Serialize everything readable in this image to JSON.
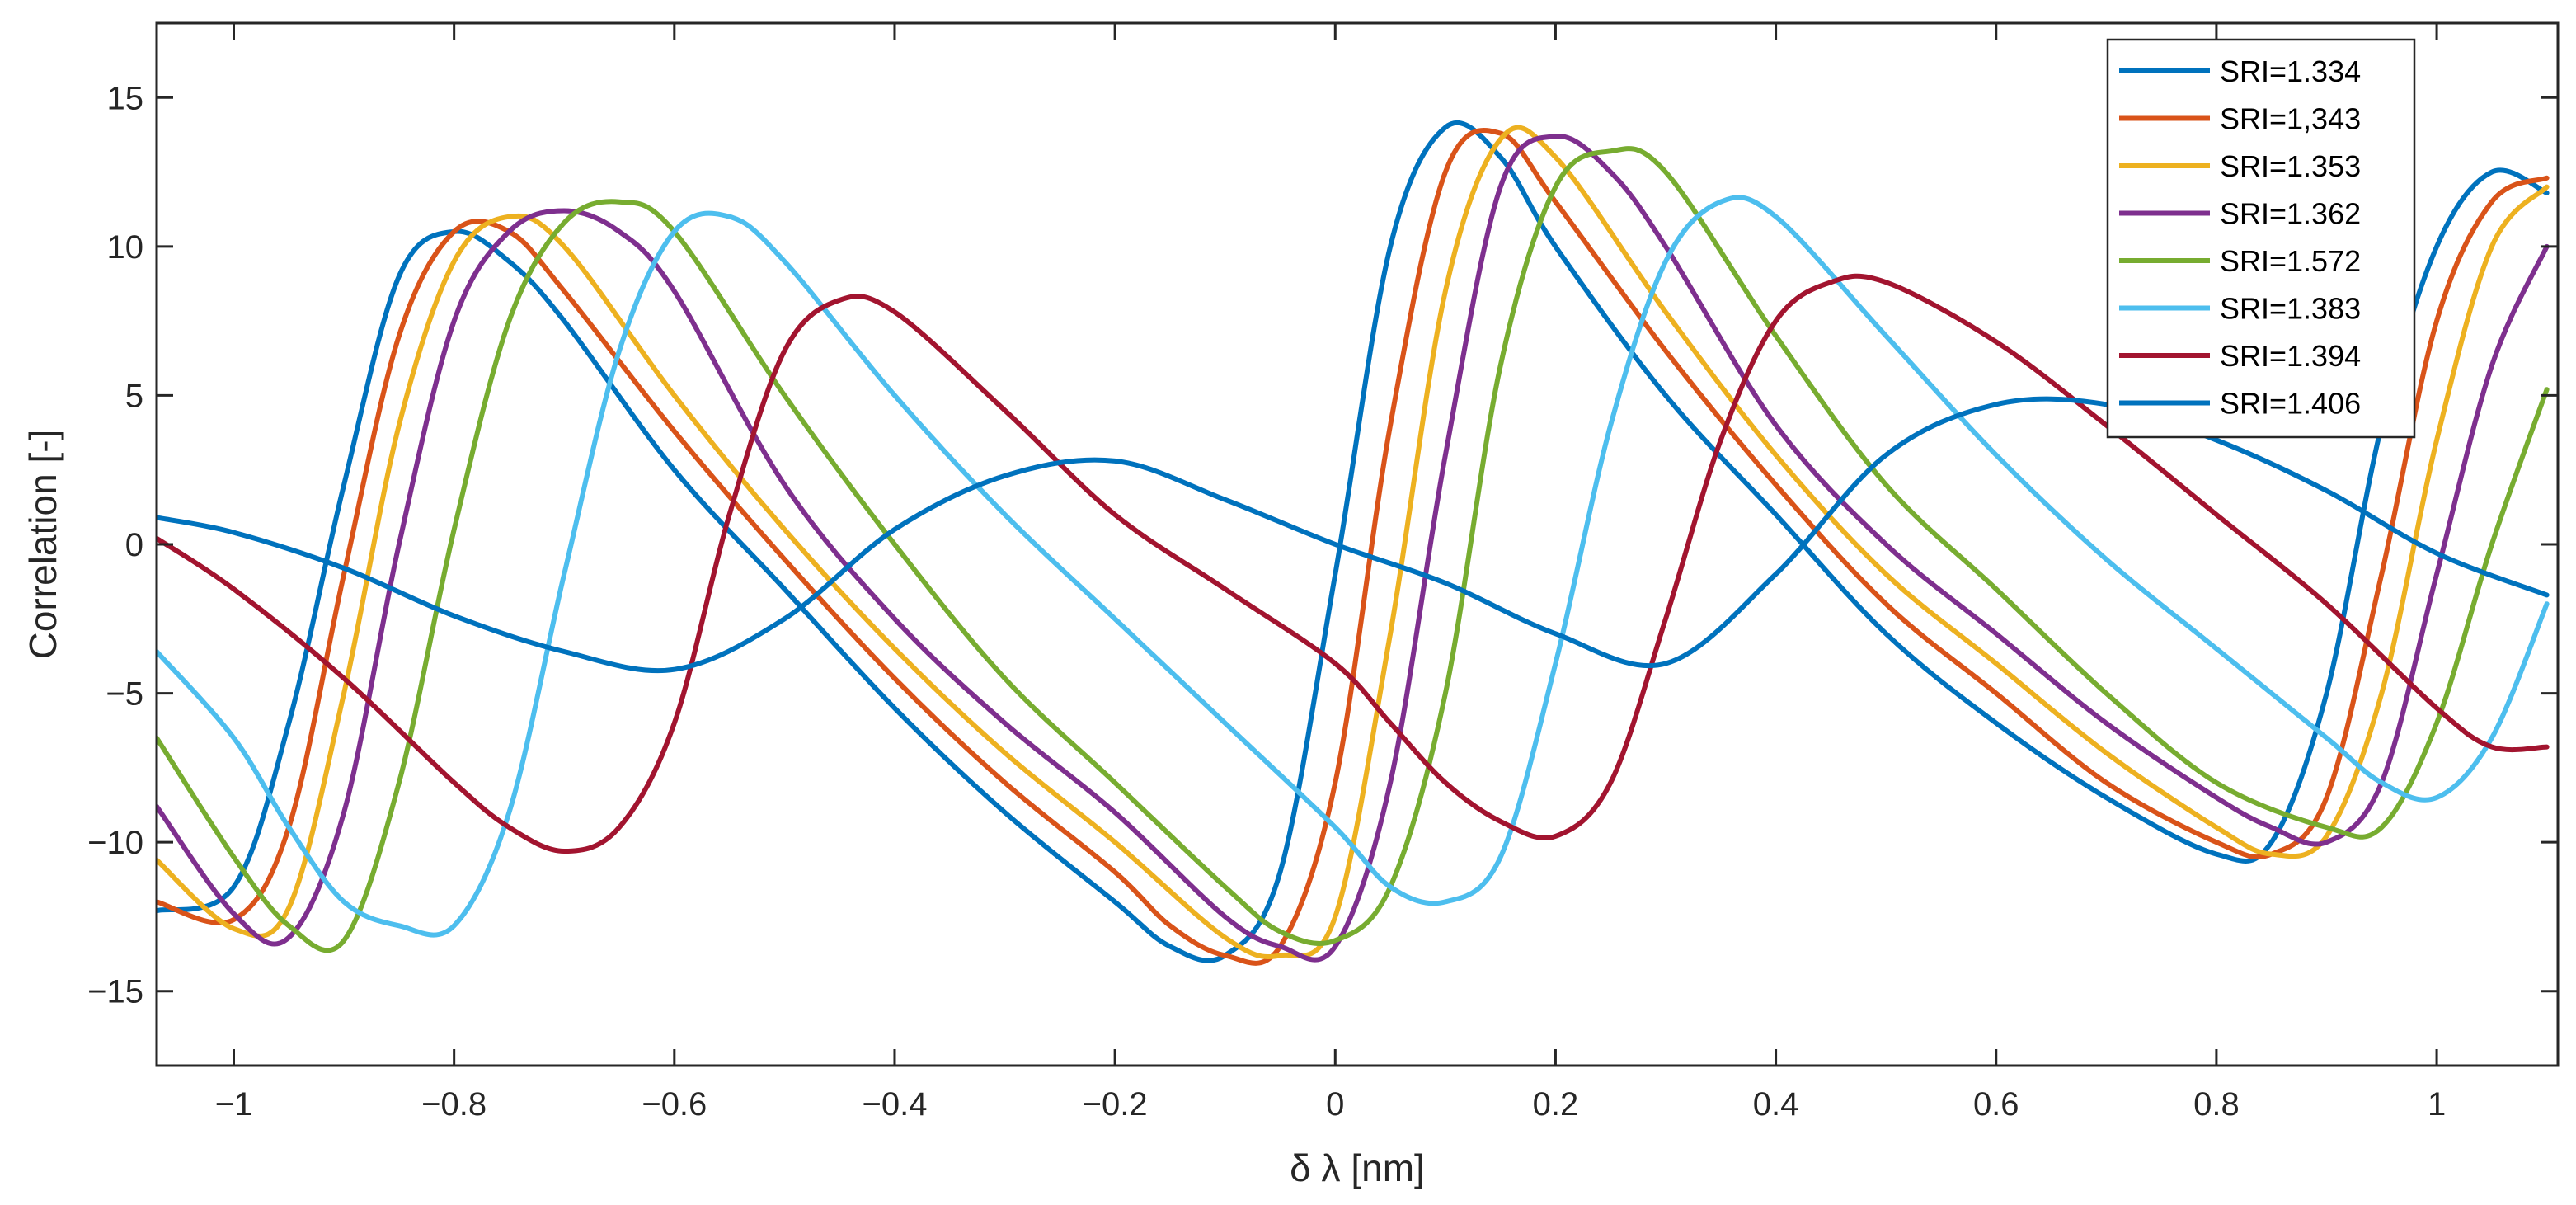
{
  "chart_data": {
    "type": "line",
    "title": "",
    "xlabel": "δ λ [nm]",
    "ylabel": "Correlation [-]",
    "xlim": [
      -1.07,
      1.11
    ],
    "ylim": [
      -17.5,
      17.5
    ],
    "xticks": [
      -1,
      -0.8,
      -0.6,
      -0.4,
      -0.2,
      0,
      0.2,
      0.4,
      0.6,
      0.8,
      1
    ],
    "xtick_labels": [
      "−1",
      "−0.8",
      "−0.6",
      "−0.4",
      "−0.2",
      "0",
      "0.2",
      "0.4",
      "0.6",
      "0.8",
      "1"
    ],
    "yticks": [
      -15,
      -10,
      -5,
      0,
      5,
      10,
      15
    ],
    "ytick_labels": [
      "−15",
      "−10",
      "−5",
      "0",
      "5",
      "10",
      "15"
    ],
    "grid": false,
    "legend_position": "top-right",
    "series": [
      {
        "name": "SRI=1.334",
        "color": "#0072BD",
        "x": [
          -1.07,
          -1.0,
          -0.95,
          -0.9,
          -0.85,
          -0.8,
          -0.75,
          -0.7,
          -0.6,
          -0.5,
          -0.4,
          -0.3,
          -0.2,
          -0.15,
          -0.1,
          -0.05,
          0.0,
          0.05,
          0.1,
          0.15,
          0.2,
          0.3,
          0.4,
          0.5,
          0.6,
          0.7,
          0.8,
          0.85,
          0.9,
          0.95,
          1.0,
          1.05,
          1.1
        ],
        "y": [
          -12.3,
          -11.5,
          -6.0,
          2.0,
          9.0,
          10.5,
          9.5,
          7.5,
          2.5,
          -1.5,
          -5.5,
          -9.0,
          -12.0,
          -13.5,
          -13.8,
          -11.0,
          -1.0,
          10.0,
          14.0,
          13.0,
          10.0,
          5.0,
          1.0,
          -3.0,
          -6.0,
          -8.5,
          -10.4,
          -10.0,
          -5.0,
          4.0,
          10.0,
          12.5,
          11.8
        ]
      },
      {
        "name": "SRI=1,343",
        "color": "#D95319",
        "x": [
          -1.07,
          -1.0,
          -0.95,
          -0.9,
          -0.85,
          -0.8,
          -0.75,
          -0.7,
          -0.6,
          -0.5,
          -0.4,
          -0.3,
          -0.2,
          -0.15,
          -0.1,
          -0.05,
          0.0,
          0.05,
          0.1,
          0.15,
          0.2,
          0.3,
          0.4,
          0.5,
          0.6,
          0.7,
          0.8,
          0.85,
          0.9,
          0.95,
          1.0,
          1.05,
          1.1
        ],
        "y": [
          -12.0,
          -12.6,
          -9.5,
          -1.0,
          7.0,
          10.5,
          10.5,
          8.5,
          3.8,
          -0.5,
          -4.5,
          -8.0,
          -11.0,
          -12.8,
          -13.8,
          -13.5,
          -8.0,
          4.0,
          12.5,
          13.8,
          11.5,
          6.5,
          2.0,
          -2.0,
          -5.0,
          -8.0,
          -10.0,
          -10.4,
          -8.5,
          -1.0,
          7.5,
          11.5,
          12.3
        ]
      },
      {
        "name": "SRI=1.353",
        "color": "#EDB120",
        "x": [
          -1.07,
          -1.0,
          -0.95,
          -0.9,
          -0.85,
          -0.8,
          -0.75,
          -0.7,
          -0.6,
          -0.5,
          -0.4,
          -0.3,
          -0.2,
          -0.1,
          -0.05,
          0.0,
          0.05,
          0.1,
          0.15,
          0.2,
          0.3,
          0.4,
          0.5,
          0.6,
          0.7,
          0.8,
          0.85,
          0.9,
          0.95,
          1.0,
          1.05,
          1.1
        ],
        "y": [
          -10.6,
          -12.9,
          -12.2,
          -5.0,
          4.0,
          9.5,
          11.0,
          10.0,
          5.0,
          0.5,
          -3.5,
          -7.0,
          -10.0,
          -13.2,
          -13.8,
          -12.5,
          -3.0,
          8.5,
          13.6,
          13.0,
          7.8,
          3.0,
          -1.0,
          -4.0,
          -7.0,
          -9.5,
          -10.4,
          -9.8,
          -5.0,
          3.5,
          10.0,
          12.0
        ]
      },
      {
        "name": "SRI=1.362",
        "color": "#7E2F8E",
        "x": [
          -1.07,
          -1.0,
          -0.95,
          -0.9,
          -0.85,
          -0.8,
          -0.75,
          -0.7,
          -0.65,
          -0.6,
          -0.5,
          -0.4,
          -0.3,
          -0.2,
          -0.1,
          -0.05,
          0.0,
          0.05,
          0.1,
          0.15,
          0.2,
          0.25,
          0.3,
          0.4,
          0.5,
          0.6,
          0.7,
          0.8,
          0.85,
          0.9,
          0.95,
          1.0,
          1.05,
          1.1
        ],
        "y": [
          -8.8,
          -12.4,
          -13.2,
          -9.0,
          0.0,
          7.5,
          10.5,
          11.2,
          10.5,
          8.5,
          2.0,
          -2.5,
          -6.0,
          -9.0,
          -12.5,
          -13.5,
          -13.5,
          -8.0,
          3.0,
          12.0,
          13.7,
          12.5,
          10.0,
          4.0,
          0.0,
          -3.0,
          -6.0,
          -8.5,
          -9.5,
          -10.0,
          -8.0,
          -1.0,
          6.0,
          10.0
        ]
      },
      {
        "name": "SRI=1.572",
        "color": "#77AC30",
        "x": [
          -1.07,
          -1.0,
          -0.95,
          -0.9,
          -0.85,
          -0.8,
          -0.75,
          -0.7,
          -0.65,
          -0.6,
          -0.5,
          -0.4,
          -0.3,
          -0.2,
          -0.1,
          -0.05,
          0.0,
          0.05,
          0.1,
          0.15,
          0.2,
          0.25,
          0.3,
          0.4,
          0.5,
          0.6,
          0.7,
          0.8,
          0.9,
          0.95,
          1.0,
          1.05,
          1.1
        ],
        "y": [
          -6.5,
          -10.5,
          -12.8,
          -13.3,
          -8.0,
          0.5,
          7.5,
          10.8,
          11.5,
          10.5,
          5.0,
          0.0,
          -4.5,
          -8.0,
          -11.5,
          -13.0,
          -13.3,
          -11.5,
          -5.0,
          6.0,
          12.0,
          13.2,
          12.5,
          7.0,
          2.0,
          -1.5,
          -5.0,
          -8.0,
          -9.5,
          -9.5,
          -6.0,
          0.0,
          5.2
        ]
      },
      {
        "name": "SRI=1.383",
        "color": "#4DBEEE",
        "x": [
          -1.07,
          -1.0,
          -0.95,
          -0.9,
          -0.85,
          -0.8,
          -0.75,
          -0.7,
          -0.65,
          -0.6,
          -0.55,
          -0.5,
          -0.4,
          -0.3,
          -0.2,
          -0.1,
          0.0,
          0.05,
          0.1,
          0.15,
          0.2,
          0.25,
          0.3,
          0.35,
          0.4,
          0.5,
          0.6,
          0.7,
          0.8,
          0.9,
          0.95,
          1.0,
          1.05,
          1.1
        ],
        "y": [
          -3.6,
          -6.5,
          -9.5,
          -12.0,
          -12.8,
          -12.8,
          -9.0,
          -1.0,
          6.5,
          10.5,
          11.0,
          9.5,
          5.0,
          1.0,
          -2.5,
          -6.0,
          -9.5,
          -11.5,
          -12.0,
          -10.5,
          -4.0,
          4.0,
          9.5,
          11.5,
          11.0,
          7.0,
          3.0,
          -0.5,
          -3.5,
          -6.5,
          -8.0,
          -8.5,
          -6.5,
          -2.0
        ]
      },
      {
        "name": "SRI=1.394",
        "color": "#A2142F",
        "x": [
          -1.07,
          -1.0,
          -0.9,
          -0.8,
          -0.75,
          -0.7,
          -0.65,
          -0.6,
          -0.55,
          -0.5,
          -0.45,
          -0.4,
          -0.3,
          -0.2,
          -0.1,
          0.0,
          0.05,
          0.1,
          0.15,
          0.2,
          0.25,
          0.3,
          0.35,
          0.4,
          0.45,
          0.5,
          0.6,
          0.7,
          0.8,
          0.9,
          1.0,
          1.05,
          1.1
        ],
        "y": [
          0.2,
          -1.5,
          -4.5,
          -8.0,
          -9.5,
          -10.3,
          -9.5,
          -6.0,
          1.0,
          6.5,
          8.2,
          7.8,
          4.5,
          1.0,
          -1.5,
          -4.0,
          -6.0,
          -8.0,
          -9.3,
          -9.8,
          -8.0,
          -2.5,
          3.5,
          7.5,
          8.8,
          8.8,
          6.8,
          4.0,
          1.0,
          -2.0,
          -5.5,
          -6.8,
          -6.8
        ]
      },
      {
        "name": "SRI=1.406",
        "color": "#0072BD",
        "x": [
          -1.07,
          -1.0,
          -0.9,
          -0.8,
          -0.7,
          -0.6,
          -0.5,
          -0.4,
          -0.3,
          -0.2,
          -0.1,
          0.0,
          0.1,
          0.2,
          0.3,
          0.4,
          0.5,
          0.6,
          0.7,
          0.8,
          0.9,
          1.0,
          1.1
        ],
        "y": [
          0.9,
          0.4,
          -0.8,
          -2.4,
          -3.6,
          -4.2,
          -2.5,
          0.5,
          2.3,
          2.8,
          1.5,
          0.0,
          -1.3,
          -3.0,
          -4.0,
          -1.0,
          3.0,
          4.7,
          4.7,
          3.5,
          1.8,
          -0.3,
          -1.7
        ]
      }
    ]
  }
}
